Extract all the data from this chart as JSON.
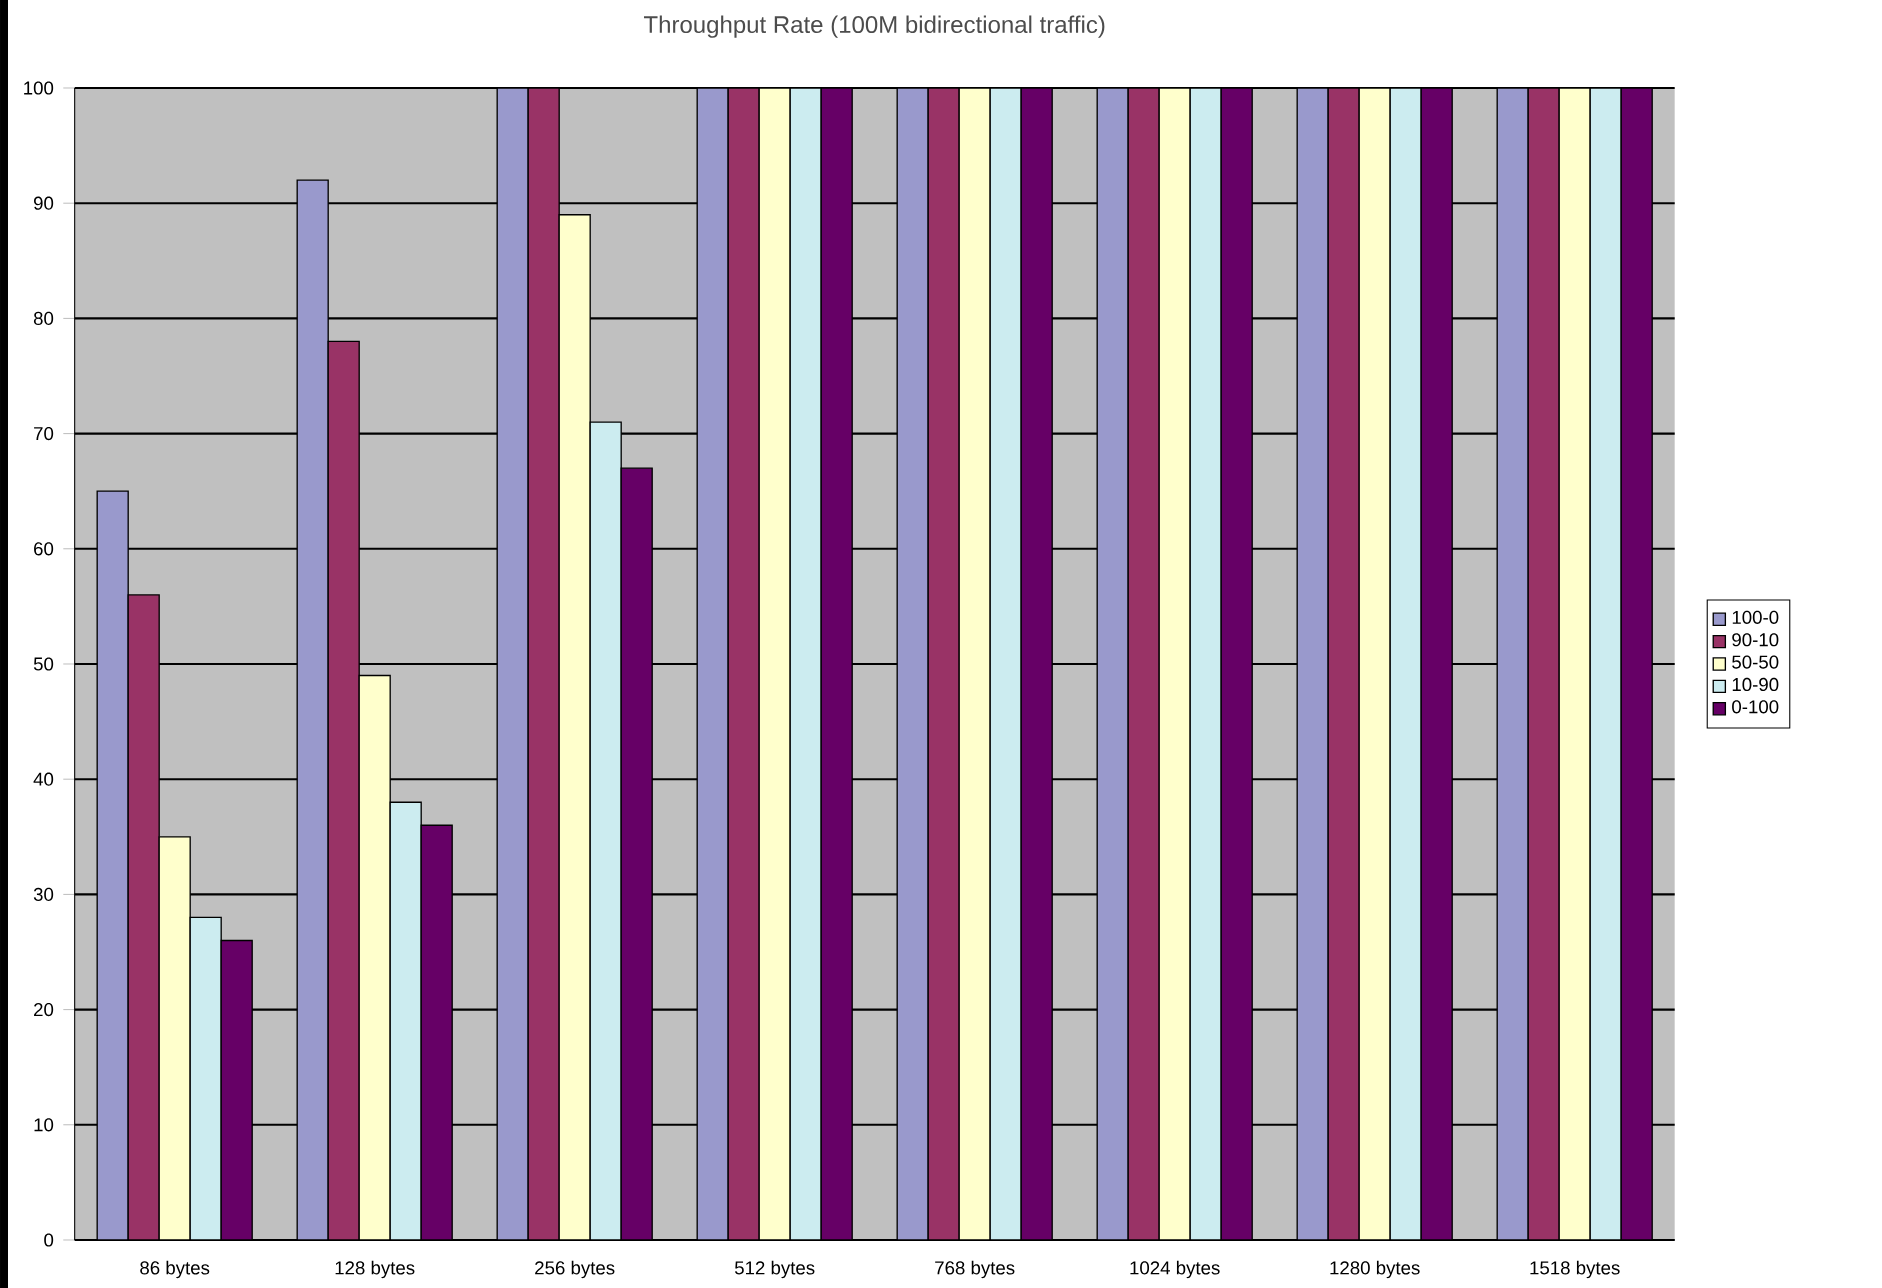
{
  "chart_data": {
    "type": "bar",
    "title": "Throughput Rate (100M bidirectional traffic)",
    "categories": [
      "86 bytes",
      "128 bytes",
      "256 bytes",
      "512 bytes",
      "768 bytes",
      "1024 bytes",
      "1280 bytes",
      "1518 bytes"
    ],
    "series": [
      {
        "name": "100-0",
        "color": "#9999cc",
        "values": [
          65,
          92,
          100,
          100,
          100,
          100,
          100,
          100
        ]
      },
      {
        "name": "90-10",
        "color": "#993366",
        "values": [
          56,
          78,
          100,
          100,
          100,
          100,
          100,
          100
        ]
      },
      {
        "name": "50-50",
        "color": "#ffffcc",
        "values": [
          35,
          49,
          89,
          100,
          100,
          100,
          100,
          100
        ]
      },
      {
        "name": "10-90",
        "color": "#ccecf0",
        "values": [
          28,
          38,
          71,
          100,
          100,
          100,
          100,
          100
        ]
      },
      {
        "name": "0-100",
        "color": "#660066",
        "values": [
          26,
          36,
          67,
          100,
          100,
          100,
          100,
          100
        ]
      }
    ],
    "ylim": [
      0,
      100
    ],
    "yticks": [
      0,
      10,
      20,
      30,
      40,
      50,
      60,
      70,
      80,
      90,
      100
    ],
    "grid": "y",
    "legend": "right"
  }
}
